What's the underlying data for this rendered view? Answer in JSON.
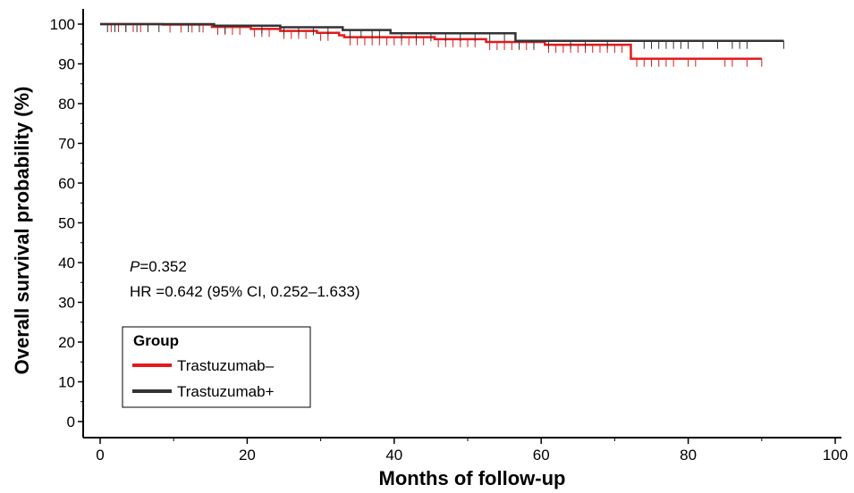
{
  "chart_data": {
    "type": "line",
    "subtype": "kaplan-meier",
    "xlabel": "Months of follow-up",
    "ylabel": "Overall survival probability (%)",
    "xlim": [
      0,
      100
    ],
    "ylim": [
      0,
      100
    ],
    "xticks": [
      0,
      20,
      40,
      60,
      80,
      100
    ],
    "yticks": [
      0,
      10,
      20,
      30,
      40,
      50,
      60,
      70,
      80,
      90,
      100
    ],
    "grid": false,
    "annotations": {
      "p_prefix": "P",
      "p_value": "=0.352",
      "hr": "HR =0.642 (95% CI, 0.252–1.633)"
    },
    "legend": {
      "title": "Group",
      "placement": "bottom-left"
    },
    "series": [
      {
        "name": "Trastuzumab–",
        "color": "#e41a1c",
        "steps": [
          [
            0,
            100
          ],
          [
            8,
            100
          ],
          [
            8.5,
            99.9
          ],
          [
            15,
            99.9
          ],
          [
            15.2,
            99.3
          ],
          [
            20,
            99.3
          ],
          [
            20.5,
            98.8
          ],
          [
            24,
            98.8
          ],
          [
            24.5,
            98.3
          ],
          [
            29,
            98.3
          ],
          [
            29.5,
            97.8
          ],
          [
            32,
            97.8
          ],
          [
            32.5,
            97.2
          ],
          [
            33,
            97.2
          ],
          [
            33.2,
            96.7
          ],
          [
            45,
            96.7
          ],
          [
            45.5,
            96.2
          ],
          [
            52,
            96.2
          ],
          [
            52.5,
            95.5
          ],
          [
            60,
            95.5
          ],
          [
            60.5,
            94.8
          ],
          [
            72,
            94.8
          ],
          [
            72.2,
            91.3
          ],
          [
            90,
            91.3
          ]
        ],
        "censored": [
          1.5,
          2.5,
          3.5,
          4.5,
          5.5,
          6.5,
          9.5,
          11,
          12.5,
          14,
          16,
          17,
          18,
          19,
          21,
          22,
          23,
          25,
          26,
          27,
          28,
          30,
          31,
          34,
          35,
          36,
          37,
          38,
          39,
          40,
          41,
          42,
          43,
          44,
          46,
          47,
          48,
          49,
          50,
          51,
          53,
          54,
          55,
          56,
          57,
          58,
          59,
          61,
          62,
          63,
          64,
          65,
          66,
          67,
          68,
          69,
          70,
          71,
          73,
          74,
          75,
          76,
          77,
          78,
          80,
          81,
          85,
          86,
          88,
          90
        ]
      },
      {
        "name": "Trastuzumab+",
        "color": "#333333",
        "steps": [
          [
            0,
            100
          ],
          [
            15,
            100
          ],
          [
            15.5,
            99.6
          ],
          [
            24,
            99.6
          ],
          [
            24.5,
            99.2
          ],
          [
            32.5,
            99.2
          ],
          [
            33,
            98.5
          ],
          [
            39,
            98.5
          ],
          [
            39.5,
            97.7
          ],
          [
            56,
            97.7
          ],
          [
            56.5,
            95.8
          ],
          [
            93,
            95.8
          ]
        ],
        "censored": [
          1,
          2,
          3.5,
          5,
          6.5,
          8,
          12,
          13.5,
          17,
          22,
          25,
          27,
          29,
          31,
          34,
          35.5,
          37,
          38,
          41,
          43,
          45,
          47,
          49,
          51,
          53,
          55,
          57,
          59,
          61,
          64,
          66,
          69,
          74,
          75,
          76,
          77,
          78,
          79,
          80,
          82,
          84,
          86,
          87,
          88,
          93
        ]
      }
    ]
  }
}
